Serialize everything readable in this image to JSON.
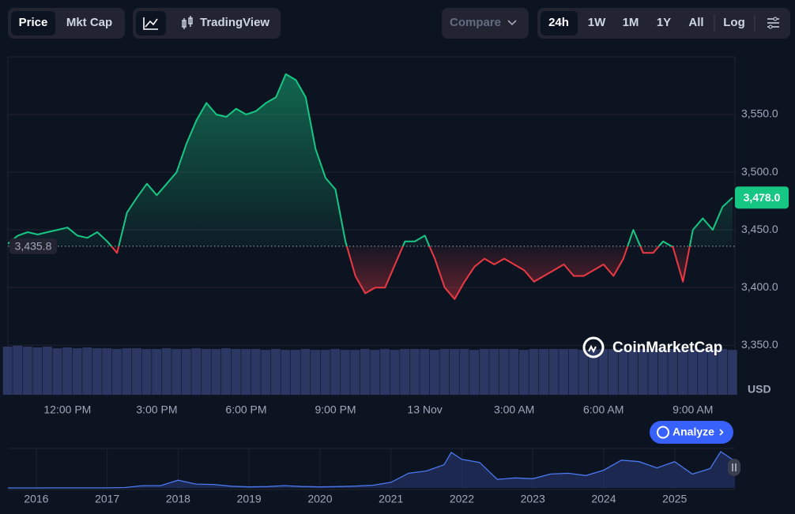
{
  "toolbar": {
    "price": "Price",
    "mkt_cap": "Mkt Cap",
    "trading_view": "TradingView",
    "compare": "Compare",
    "ranges": [
      "24h",
      "1W",
      "1M",
      "1Y",
      "All"
    ],
    "log": "Log"
  },
  "watermark": "CoinMarketCap",
  "analyze": "Analyze",
  "chart_data": [
    {
      "type": "area",
      "categories": [
        null,
        null,
        null,
        null,
        null,
        null,
        "12:00 PM",
        null,
        null,
        null,
        null,
        null,
        null,
        null,
        null,
        "3:00 PM",
        null,
        null,
        null,
        null,
        null,
        null,
        null,
        null,
        "6:00 PM",
        null,
        null,
        null,
        null,
        null,
        null,
        null,
        null,
        "9:00 PM",
        null,
        null,
        null,
        null,
        null,
        null,
        null,
        null,
        "13 Nov",
        null,
        null,
        null,
        null,
        null,
        null,
        null,
        null,
        "3:00 AM",
        null,
        null,
        null,
        null,
        null,
        null,
        null,
        null,
        "6:00 AM",
        null,
        null,
        null,
        null,
        null,
        null,
        null,
        null,
        "9:00 AM",
        null,
        null,
        null,
        null
      ],
      "values": [
        3438,
        3445,
        3448,
        3446,
        3448,
        3450,
        3452,
        3445,
        3443,
        3448,
        3440,
        3430,
        3465,
        3478,
        3490,
        3480,
        3490,
        3500,
        3525,
        3545,
        3560,
        3550,
        3548,
        3555,
        3550,
        3553,
        3560,
        3565,
        3585,
        3580,
        3565,
        3520,
        3495,
        3485,
        3440,
        3410,
        3395,
        3400,
        3400,
        3420,
        3440,
        3440,
        3445,
        3425,
        3400,
        3390,
        3405,
        3418,
        3425,
        3420,
        3425,
        3420,
        3415,
        3405,
        3410,
        3415,
        3420,
        3410,
        3410,
        3415,
        3420,
        3410,
        3425,
        3450,
        3430,
        3430,
        3440,
        3435,
        3405,
        3450,
        3460,
        3450,
        3470,
        3478
      ],
      "volume": [
        60,
        61,
        60,
        59,
        60,
        58,
        59,
        58,
        59,
        58,
        58,
        57,
        58,
        58,
        57,
        57,
        58,
        57,
        57,
        58,
        57,
        57,
        58,
        57,
        57,
        57,
        56,
        57,
        56,
        56,
        57,
        56,
        56,
        57,
        56,
        56,
        57,
        56,
        57,
        56,
        57,
        57,
        57,
        56,
        57,
        57,
        57,
        56,
        57,
        57,
        57,
        57,
        56,
        57,
        57,
        57,
        57,
        57,
        56,
        57,
        57,
        57,
        57,
        56,
        57,
        57,
        57,
        57,
        57,
        57,
        57,
        57,
        57,
        56
      ],
      "ylim": [
        3307,
        3600
      ],
      "yticks": [
        {
          "value": 3350,
          "label": "3,350.0"
        },
        {
          "value": 3400,
          "label": "3,400.0"
        },
        {
          "value": 3450,
          "label": "3,450.0"
        },
        {
          "value": 3500,
          "label": "3,500.0"
        },
        {
          "value": 3550,
          "label": "3,550.0"
        }
      ],
      "y_unit": "USD",
      "baseline": {
        "value": 3435.8,
        "label": "3,435.8"
      },
      "last_price": {
        "value": 3478,
        "label": "3,478.0"
      },
      "colors": {
        "up": "#16c784",
        "down": "#ea3943",
        "volume": "#2c3763"
      },
      "grid": true
    },
    {
      "type": "line",
      "x": [
        2015.6,
        2016,
        2016.25,
        2016.5,
        2016.75,
        2017,
        2017.25,
        2017.5,
        2017.75,
        2018,
        2018.25,
        2018.5,
        2018.75,
        2019,
        2019.25,
        2019.5,
        2019.75,
        2020,
        2020.25,
        2020.5,
        2020.75,
        2021,
        2021.25,
        2021.5,
        2021.75,
        2021.85,
        2022,
        2022.25,
        2022.5,
        2022.75,
        2023,
        2023.25,
        2023.5,
        2023.75,
        2024,
        2024.25,
        2024.5,
        2024.75,
        2025,
        2025.25,
        2025.5,
        2025.65,
        2025.85
      ],
      "values": [
        1,
        1,
        10,
        12,
        12,
        8,
        50,
        300,
        300,
        1000,
        500,
        450,
        220,
        130,
        170,
        300,
        180,
        130,
        170,
        230,
        360,
        730,
        1900,
        2200,
        3000,
        4600,
        3700,
        3300,
        1100,
        1300,
        1200,
        1800,
        1900,
        1600,
        2300,
        3600,
        3400,
        2600,
        3400,
        1800,
        2500,
        4700,
        3478
      ],
      "xlim": [
        2015.6,
        2025.85
      ],
      "xticks": [
        2016,
        2017,
        2018,
        2019,
        2020,
        2021,
        2022,
        2023,
        2024,
        2025
      ],
      "color": "#4a78f0"
    }
  ]
}
